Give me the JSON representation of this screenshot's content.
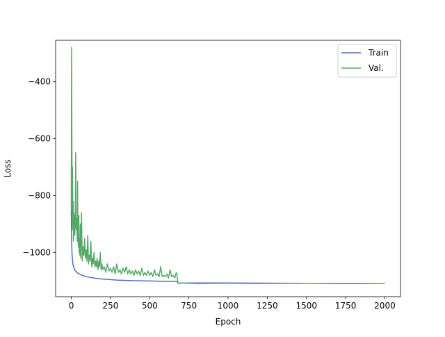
{
  "chart_data": {
    "type": "line",
    "title": "",
    "xlabel": "Epoch",
    "ylabel": "Loss",
    "xlim": [
      -100,
      2100
    ],
    "ylim": [
      -1155,
      -255
    ],
    "xticks": [
      0,
      250,
      500,
      750,
      1000,
      1250,
      1500,
      1750,
      2000
    ],
    "yticks": [
      -1000,
      -800,
      -600,
      -400
    ],
    "ytick_labels": [
      "−1000",
      "−800",
      "−600",
      "−400"
    ],
    "grid": false,
    "legend_position": "top-right",
    "series": [
      {
        "name": "Train",
        "color": "#4c72b0",
        "x": [
          0,
          2,
          5,
          10,
          20,
          40,
          70,
          100,
          150,
          200,
          300,
          400,
          500,
          600,
          675,
          680,
          800,
          1000,
          1500,
          2000
        ],
        "y": [
          -850,
          -960,
          -1010,
          -1040,
          -1060,
          -1072,
          -1080,
          -1085,
          -1090,
          -1093,
          -1097,
          -1099,
          -1100,
          -1101,
          -1101,
          -1107,
          -1107,
          -1107,
          -1108,
          -1108
        ]
      },
      {
        "name": "Val.",
        "color": "#55a868",
        "x": [
          0,
          2,
          4,
          6,
          8,
          10,
          12,
          14,
          16,
          18,
          20,
          22,
          25,
          28,
          30,
          32,
          35,
          38,
          40,
          42,
          45,
          48,
          50,
          52,
          55,
          58,
          60,
          65,
          70,
          75,
          80,
          85,
          90,
          95,
          100,
          105,
          110,
          115,
          120,
          125,
          130,
          135,
          140,
          145,
          150,
          155,
          160,
          165,
          170,
          175,
          180,
          185,
          190,
          195,
          200,
          210,
          220,
          230,
          240,
          250,
          260,
          270,
          280,
          290,
          300,
          310,
          320,
          330,
          340,
          350,
          360,
          370,
          380,
          390,
          400,
          410,
          420,
          430,
          440,
          450,
          460,
          470,
          480,
          490,
          500,
          510,
          520,
          530,
          540,
          550,
          560,
          570,
          580,
          590,
          600,
          610,
          620,
          630,
          640,
          650,
          660,
          670,
          675,
          680,
          700,
          800,
          1000,
          1200,
          1500,
          1800,
          2000
        ],
        "y": [
          -850,
          -280,
          -600,
          -920,
          -700,
          -900,
          -820,
          -960,
          -860,
          -900,
          -870,
          -940,
          -900,
          -650,
          -900,
          -920,
          -880,
          -960,
          -750,
          -930,
          -980,
          -870,
          -1000,
          -950,
          -1010,
          -900,
          -1020,
          -860,
          -1030,
          -980,
          -1010,
          -950,
          -1020,
          -990,
          -1030,
          -940,
          -1040,
          -1010,
          -1030,
          -960,
          -1050,
          -1020,
          -1040,
          -1000,
          -1050,
          -1030,
          -1050,
          -1020,
          -1060,
          -1030,
          -1050,
          -1000,
          -1060,
          -1040,
          -1060,
          -1050,
          -1070,
          -1040,
          -1065,
          -1055,
          -1070,
          -1050,
          -1075,
          -1040,
          -1070,
          -1060,
          -1075,
          -1055,
          -1070,
          -1050,
          -1075,
          -1060,
          -1075,
          -1065,
          -1080,
          -1060,
          -1075,
          -1065,
          -1080,
          -1055,
          -1080,
          -1070,
          -1080,
          -1065,
          -1080,
          -1070,
          -1085,
          -1060,
          -1080,
          -1075,
          -1085,
          -1050,
          -1085,
          -1080,
          -1085,
          -1075,
          -1090,
          -1060,
          -1085,
          -1080,
          -1090,
          -1070,
          -1080,
          -1108,
          -1107,
          -1109,
          -1108,
          -1109,
          -1108,
          -1109,
          -1108
        ]
      }
    ]
  }
}
